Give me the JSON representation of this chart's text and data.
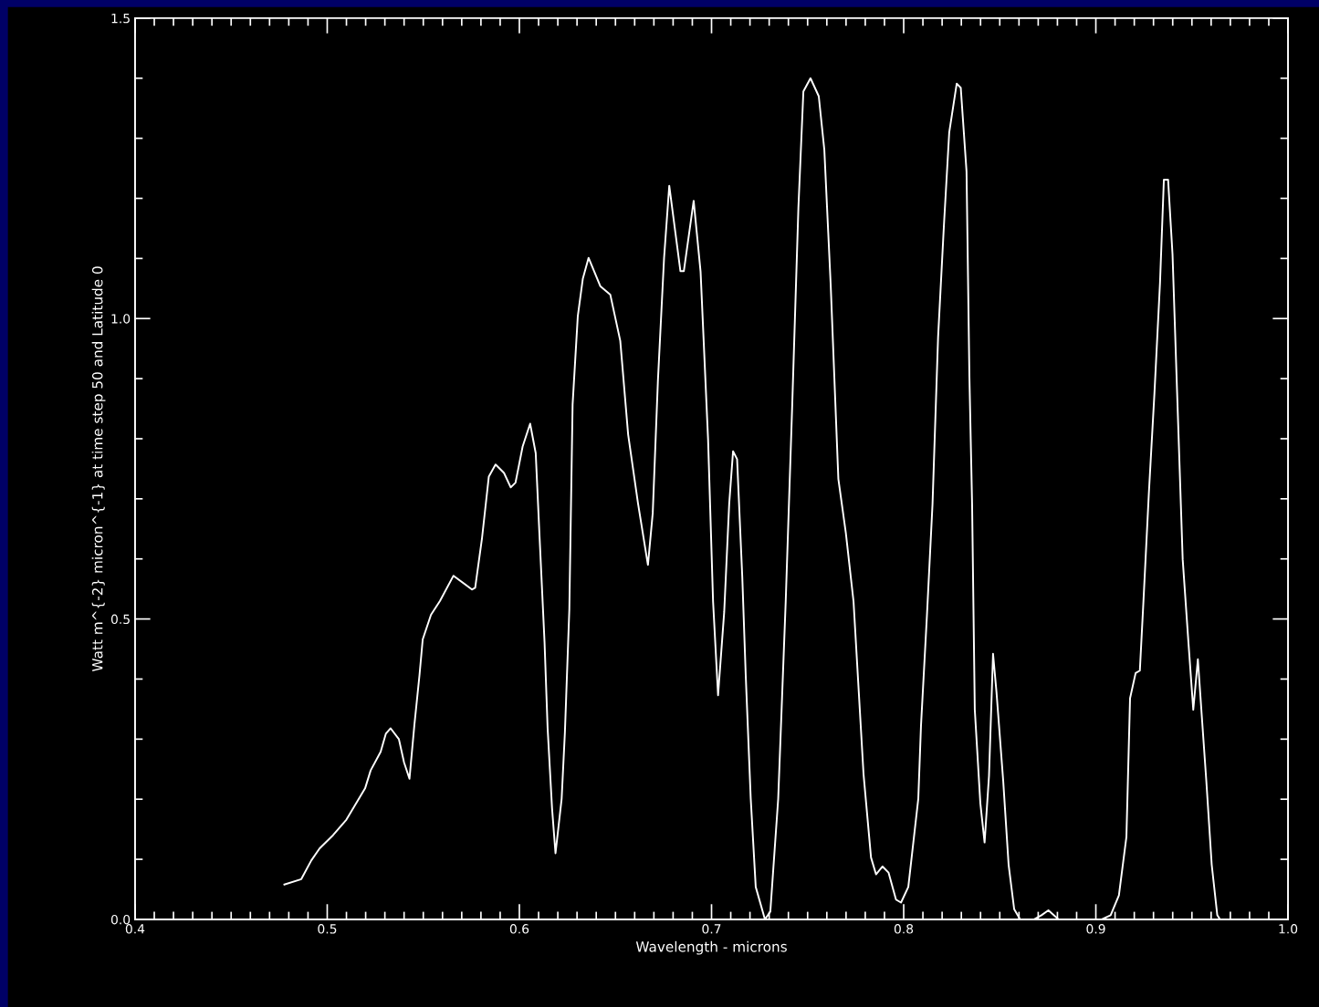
{
  "chart_data": {
    "type": "line",
    "xlabel": "Wavelength - microns",
    "ylabel": "Watt m^{-2} micron^{-1} at time step 50 and Latitude 0",
    "x": [
      0.4777,
      0.4865,
      0.4917,
      0.496,
      0.503,
      0.51,
      0.5197,
      0.5226,
      0.5278,
      0.5305,
      0.533,
      0.5373,
      0.54,
      0.5428,
      0.5454,
      0.548,
      0.5497,
      0.554,
      0.5587,
      0.5657,
      0.5753,
      0.577,
      0.5805,
      0.5841,
      0.5876,
      0.592,
      0.5955,
      0.598,
      0.6017,
      0.6056,
      0.6085,
      0.6105,
      0.6131,
      0.6147,
      0.617,
      0.6188,
      0.622,
      0.6237,
      0.626,
      0.6277,
      0.6304,
      0.633,
      0.636,
      0.6421,
      0.6473,
      0.6525,
      0.6566,
      0.6617,
      0.6669,
      0.6694,
      0.6721,
      0.6753,
      0.678,
      0.6838,
      0.6856,
      0.6907,
      0.6943,
      0.6982,
      0.7008,
      0.7034,
      0.7066,
      0.7092,
      0.7112,
      0.7133,
      0.716,
      0.7178,
      0.7204,
      0.723,
      0.7278,
      0.7306,
      0.7347,
      0.7386,
      0.742,
      0.7452,
      0.7478,
      0.7515,
      0.7558,
      0.7587,
      0.762,
      0.766,
      0.7699,
      0.7739,
      0.7791,
      0.783,
      0.7856,
      0.789,
      0.7921,
      0.796,
      0.7986,
      0.8024,
      0.8076,
      0.809,
      0.8121,
      0.815,
      0.8179,
      0.8209,
      0.8237,
      0.8276,
      0.8297,
      0.8327,
      0.8342,
      0.8356,
      0.837,
      0.8399,
      0.8421,
      0.8444,
      0.8465,
      0.8483,
      0.8518,
      0.8546,
      0.8575,
      0.8606,
      0.8679,
      0.8717,
      0.8753,
      0.8806,
      0.9031,
      0.9077,
      0.912,
      0.9159,
      0.9178,
      0.9207,
      0.9229,
      0.9247,
      0.9276,
      0.9305,
      0.9334,
      0.9354,
      0.9376,
      0.9399,
      0.9423,
      0.9452,
      0.9482,
      0.9507,
      0.9531,
      0.9551,
      0.9575,
      0.9603,
      0.9632,
      0.9646
    ],
    "values": [
      0.058,
      0.067,
      0.098,
      0.118,
      0.14,
      0.166,
      0.218,
      0.248,
      0.279,
      0.309,
      0.318,
      0.3,
      0.261,
      0.234,
      0.325,
      0.406,
      0.466,
      0.507,
      0.53,
      0.572,
      0.549,
      0.552,
      0.633,
      0.737,
      0.757,
      0.743,
      0.719,
      0.727,
      0.787,
      0.825,
      0.776,
      0.637,
      0.461,
      0.318,
      0.185,
      0.11,
      0.201,
      0.312,
      0.516,
      0.857,
      1.004,
      1.066,
      1.101,
      1.054,
      1.04,
      0.963,
      0.807,
      0.693,
      0.59,
      0.676,
      0.897,
      1.101,
      1.221,
      1.079,
      1.079,
      1.196,
      1.078,
      0.799,
      0.529,
      0.373,
      0.512,
      0.692,
      0.779,
      0.766,
      0.57,
      0.406,
      0.201,
      0.054,
      0.0,
      0.013,
      0.201,
      0.529,
      0.857,
      1.184,
      1.378,
      1.4,
      1.37,
      1.281,
      1.057,
      0.733,
      0.643,
      0.529,
      0.242,
      0.103,
      0.075,
      0.088,
      0.078,
      0.033,
      0.028,
      0.054,
      0.201,
      0.322,
      0.506,
      0.691,
      0.969,
      1.153,
      1.31,
      1.391,
      1.384,
      1.245,
      0.903,
      0.691,
      0.349,
      0.193,
      0.128,
      0.239,
      0.442,
      0.378,
      0.23,
      0.091,
      0.017,
      0.0,
      0.0,
      0.007,
      0.015,
      0.0,
      0.0,
      0.007,
      0.04,
      0.137,
      0.368,
      0.41,
      0.414,
      0.525,
      0.71,
      0.876,
      1.06,
      1.231,
      1.231,
      1.107,
      0.876,
      0.599,
      0.46,
      0.349,
      0.433,
      0.34,
      0.23,
      0.091,
      0.007,
      0.0
    ],
    "color": "#ffffff",
    "line_style": "solid",
    "marker": "none",
    "grid": false,
    "legend": false,
    "xlim": [
      0.4,
      1.0
    ],
    "xticks": [
      {
        "value": 0.4,
        "label": "0.4"
      },
      {
        "value": 0.5,
        "label": "0.5"
      },
      {
        "value": 0.6,
        "label": "0.6"
      },
      {
        "value": 0.7,
        "label": "0.7"
      },
      {
        "value": 0.8,
        "label": "0.8"
      },
      {
        "value": 0.9,
        "label": "0.9"
      },
      {
        "value": 1.0,
        "label": "1.0"
      }
    ],
    "ylim": [
      0.0,
      1.5
    ],
    "yticks": [
      {
        "value": 0.0,
        "label": "0.0"
      },
      {
        "value": 0.5,
        "label": "0.5"
      },
      {
        "value": 1.0,
        "label": "1.0"
      },
      {
        "value": 1.5,
        "label": "1.5"
      }
    ]
  }
}
